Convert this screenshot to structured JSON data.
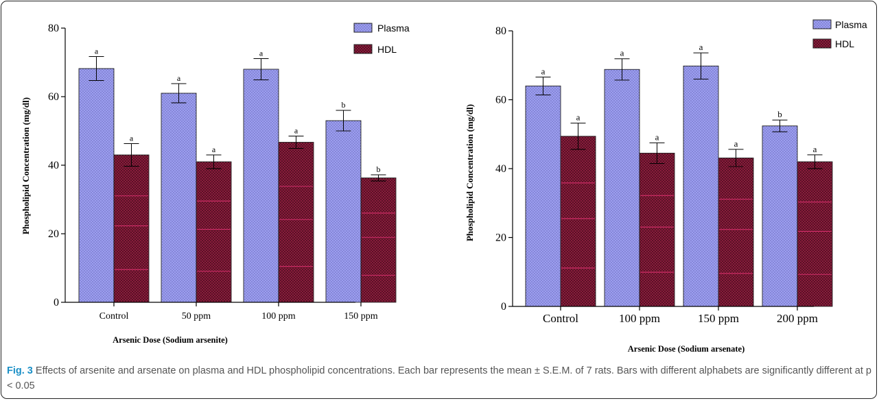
{
  "caption": {
    "label": "Fig. 3",
    "text": "Effects of arsenite and arsenate on plasma and HDL phospholipid concentrations. Each bar represents the mean ± S.E.M. of 7 rats. Bars with different alphabets are significantly different at p < 0.05"
  },
  "colors": {
    "plasma": "#9c9ef0",
    "hdl": "#8a1c3c",
    "hdl_lines": "#d9306e",
    "axis": "#000000"
  },
  "chart_data": [
    {
      "type": "bar",
      "title": "",
      "xlabel": "Arsenic Dose (Sodium arsenite)",
      "ylabel": "Phospholipid Concentration (mg/dl)",
      "ylim": [
        0,
        80
      ],
      "yticks": [
        0,
        20,
        40,
        60,
        80
      ],
      "categories": [
        "Control",
        "50 ppm",
        "100 ppm",
        "150 ppm"
      ],
      "legend_position": "top-right",
      "series": [
        {
          "name": "Plasma",
          "values": [
            68.2,
            61.0,
            68.0,
            53.0
          ],
          "errors": [
            3.5,
            2.8,
            3.1,
            3.0
          ],
          "letters": [
            "a",
            "a",
            "a",
            "b"
          ]
        },
        {
          "name": "HDL",
          "values": [
            43.0,
            41.0,
            46.7,
            36.3
          ],
          "errors": [
            3.3,
            2.0,
            1.8,
            0.9
          ],
          "letters": [
            "a",
            "a",
            "a",
            "b"
          ]
        }
      ]
    },
    {
      "type": "bar",
      "title": "",
      "xlabel": "Arsenic Dose (Sodium arsenate)",
      "ylabel": "Phospholipid Concentration (mg/dl)",
      "ylim": [
        0,
        80
      ],
      "yticks": [
        0,
        20,
        40,
        60,
        80
      ],
      "categories": [
        "Control",
        "100 ppm",
        "150 ppm",
        "200 ppm"
      ],
      "legend_position": "top-right",
      "series": [
        {
          "name": "Plasma",
          "values": [
            64.0,
            68.8,
            69.8,
            52.4
          ],
          "errors": [
            2.6,
            3.1,
            3.8,
            1.7
          ],
          "letters": [
            "a",
            "a",
            "a",
            "b"
          ]
        },
        {
          "name": "HDL",
          "values": [
            49.4,
            44.5,
            43.1,
            42.0
          ],
          "errors": [
            3.8,
            3.0,
            2.5,
            2.0
          ],
          "letters": [
            "a",
            "a",
            "a",
            "a"
          ]
        }
      ]
    }
  ]
}
